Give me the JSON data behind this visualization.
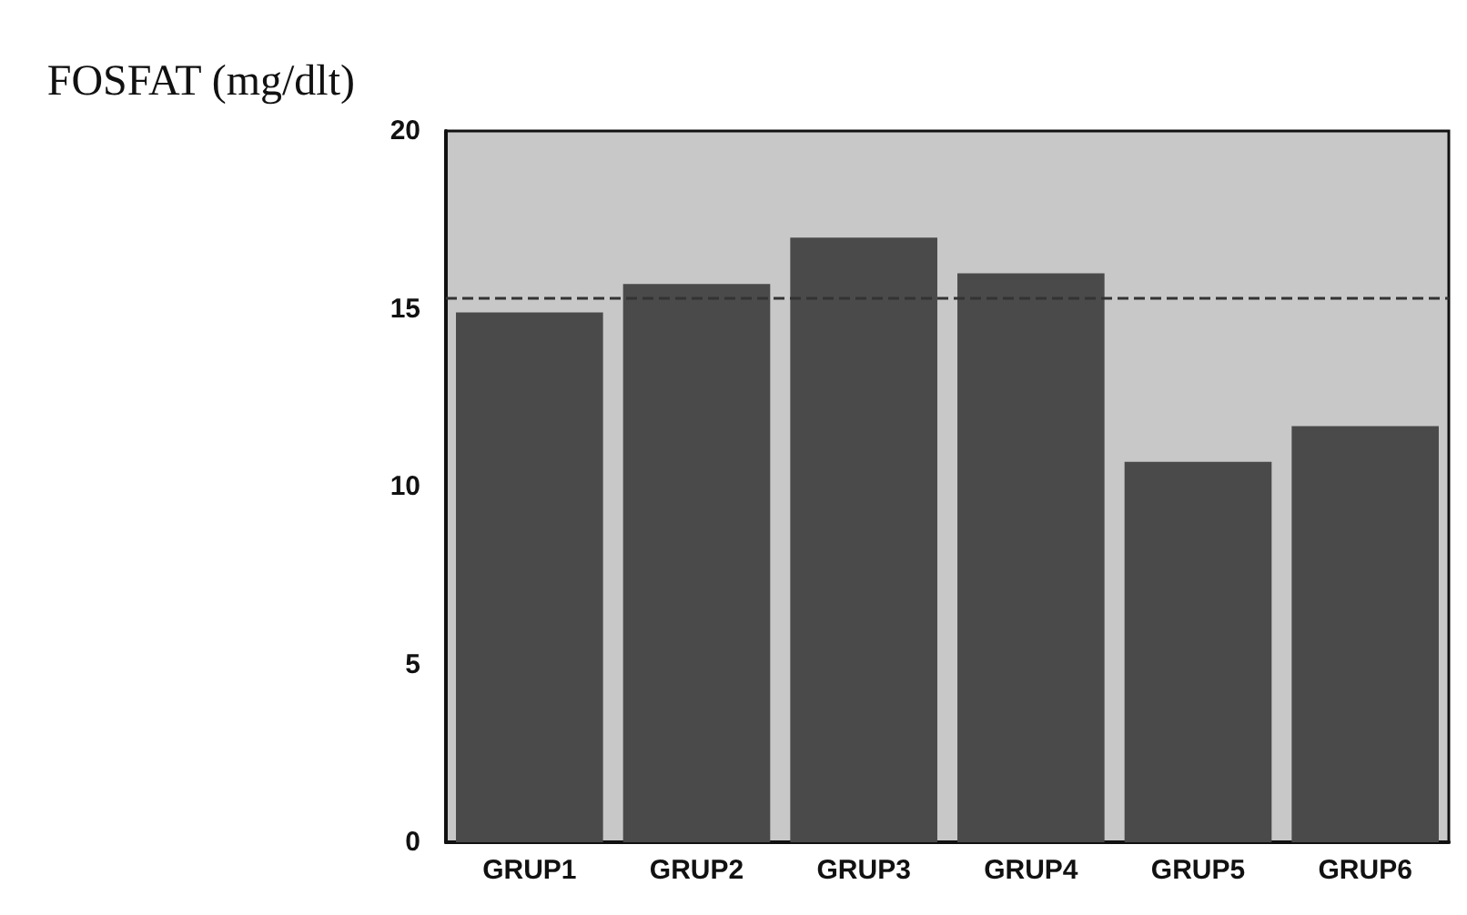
{
  "chart_data": {
    "type": "bar",
    "ylabel": "FOSFAT (mg/dlt)",
    "categories": [
      "GRUP1",
      "GRUP2",
      "GRUP3",
      "GRUP4",
      "GRUP5",
      "GRUP6"
    ],
    "values": [
      14.9,
      15.7,
      17.0,
      16.0,
      10.7,
      11.7
    ],
    "color": "#4a4a4a",
    "ylim": [
      0,
      20
    ],
    "yticks": [
      0,
      5,
      10,
      15,
      20
    ],
    "ref_lines": [
      {
        "axis": "y",
        "value": 15.3,
        "color": "#333333",
        "line_style": "dashed"
      }
    ],
    "grid": false
  }
}
